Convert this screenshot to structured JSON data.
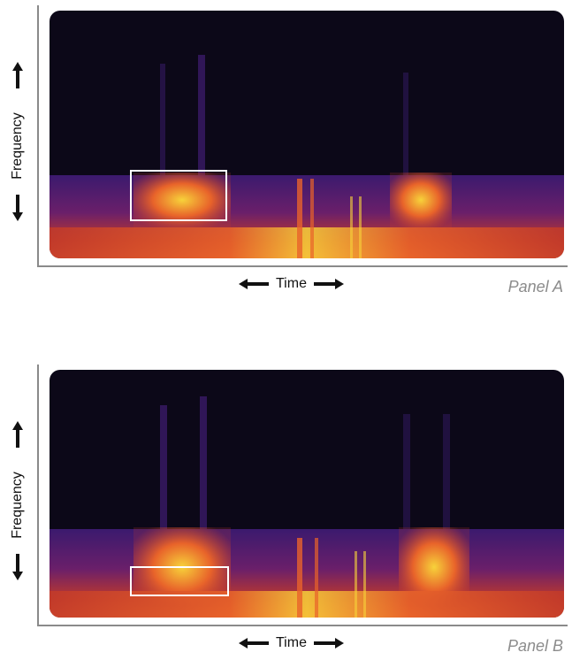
{
  "panels": [
    {
      "label": "Panel A",
      "y_axis_label": "Frequency",
      "x_axis_label": "Time",
      "highlight": "low-frequency region of first syllable"
    },
    {
      "label": "Panel B",
      "y_axis_label": "Frequency",
      "x_axis_label": "Time",
      "highlight": "lowest frequency region of first syllable"
    }
  ],
  "colors": {
    "background": "#0c0818",
    "low": "#3b1a6e",
    "mid": "#c23a2a",
    "high": "#f7d23a",
    "box": "#ffffff",
    "axis": "#8a8a8a",
    "panel_label": "#8c8c8c"
  }
}
